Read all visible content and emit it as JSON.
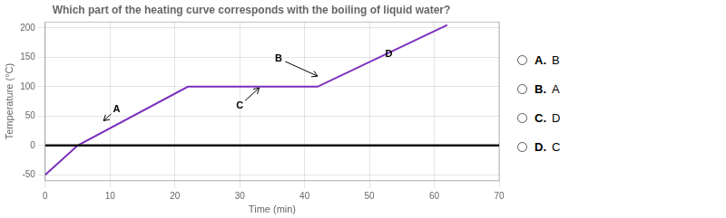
{
  "chart_data": {
    "type": "line",
    "title": "Which part of the heating curve corresponds with the boiling of liquid water?",
    "xlabel": "Time (min)",
    "ylabel": "Temperature (°C)",
    "x": [
      0,
      5,
      22,
      40,
      42,
      62
    ],
    "series": [
      {
        "color": "#7b2fbe",
        "values": [
          -50,
          0,
          100,
          100,
          100,
          205
        ]
      }
    ],
    "xlim": [
      0,
      70
    ],
    "xticks": [
      0,
      10,
      20,
      30,
      40,
      50,
      60,
      70
    ],
    "ylim": [
      -60,
      210
    ],
    "yticks": [
      -50,
      0,
      50,
      100,
      150,
      200
    ],
    "grid": true,
    "reference_lines": [
      {
        "y": 0,
        "color": "#111111"
      }
    ],
    "annotations": [
      {
        "text": "A",
        "x": 11,
        "y": 62,
        "arrow_x": 9,
        "arrow_y": 42
      },
      {
        "text": "B",
        "x": 36,
        "y": 148,
        "arrow_x": 42,
        "arrow_y": 118
      },
      {
        "text": "C",
        "x": 30,
        "y": 68,
        "arrow_x": 33,
        "arrow_y": 98
      },
      {
        "text": "D",
        "x": 53,
        "y": 155
      }
    ],
    "choices": [
      "A.  B",
      "B.  A",
      "C.  D",
      "D.  C"
    ]
  }
}
